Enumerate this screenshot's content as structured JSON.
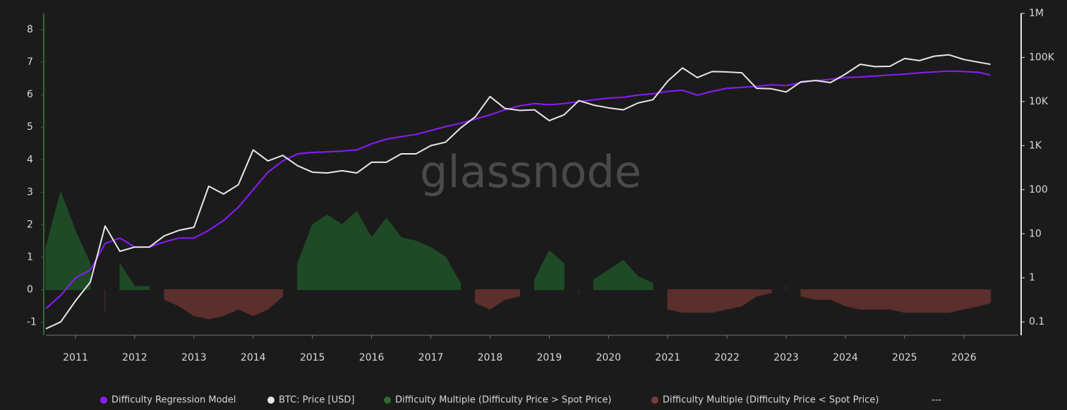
{
  "chart_data": {
    "type": "line",
    "watermark": "glassnode",
    "x": [
      2010.5,
      2010.75,
      2011,
      2011.25,
      2011.5,
      2011.75,
      2012,
      2012.25,
      2012.5,
      2012.75,
      2013,
      2013.25,
      2013.5,
      2013.75,
      2014,
      2014.25,
      2014.5,
      2014.75,
      2015,
      2015.25,
      2015.5,
      2015.75,
      2016,
      2016.25,
      2016.5,
      2016.75,
      2017,
      2017.25,
      2017.5,
      2017.75,
      2018,
      2018.25,
      2018.5,
      2018.75,
      2019,
      2019.25,
      2019.5,
      2019.75,
      2020,
      2020.25,
      2020.5,
      2020.75,
      2021,
      2021.25,
      2021.5,
      2021.75,
      2022,
      2022.25,
      2022.5,
      2022.75,
      2023,
      2023.25,
      2023.5,
      2023.75,
      2024,
      2024.25,
      2024.5,
      2024.75,
      2025,
      2025.25,
      2025.5,
      2025.75,
      2026,
      2026.25,
      2026.45
    ],
    "xlim": [
      2010.5,
      2026.92
    ],
    "xticks": [
      2011,
      2012,
      2013,
      2014,
      2015,
      2016,
      2017,
      2018,
      2019,
      2020,
      2021,
      2022,
      2023,
      2024,
      2025,
      2026
    ],
    "ylim": [
      -1.4,
      8.5
    ],
    "yticks": [
      -1,
      0,
      1,
      2,
      3,
      4,
      5,
      6,
      7,
      8
    ],
    "y2lim": [
      0.05,
      1000000
    ],
    "y2scale": "log",
    "y2ticks": [
      0.1,
      1,
      10,
      100,
      {
        "value": 1000,
        "label": "1K"
      },
      {
        "value": 10000,
        "label": "10K"
      },
      {
        "value": 100000,
        "label": "100K"
      },
      {
        "value": 1000000,
        "label": "1M"
      }
    ],
    "series": [
      {
        "name": "Difficulty Regression Model",
        "color": "#8a1cff",
        "type": "line",
        "axis": "y2",
        "values": [
          0.2,
          0.4,
          1,
          1.5,
          6,
          8,
          5,
          5,
          6.5,
          8,
          8,
          12,
          20,
          40,
          100,
          250,
          450,
          650,
          700,
          720,
          750,
          800,
          1100,
          1400,
          1600,
          1800,
          2200,
          2700,
          3200,
          4000,
          5000,
          6500,
          8000,
          9000,
          8500,
          9000,
          10000,
          11000,
          12000,
          12500,
          14000,
          15000,
          17000,
          18000,
          14000,
          17000,
          20000,
          21000,
          22000,
          24000,
          23000,
          27000,
          30000,
          32000,
          35000,
          36000,
          38000,
          40000,
          42000,
          45000,
          47000,
          49000,
          48000,
          46000,
          40000
        ]
      },
      {
        "name": "BTC: Price [USD]",
        "color": "#e8e8e8",
        "type": "line",
        "axis": "y2",
        "values": [
          0.07,
          0.1,
          0.3,
          0.8,
          15,
          4,
          5,
          5,
          9,
          12,
          14,
          120,
          80,
          130,
          800,
          450,
          600,
          350,
          250,
          240,
          270,
          240,
          420,
          420,
          650,
          650,
          1000,
          1200,
          2500,
          4500,
          13000,
          7000,
          6300,
          6500,
          3700,
          5000,
          10500,
          8300,
          7200,
          6500,
          9300,
          11000,
          29000,
          58000,
          35000,
          48000,
          47000,
          45000,
          20000,
          19500,
          16500,
          28000,
          30000,
          27000,
          42000,
          70000,
          62000,
          63000,
          95000,
          85000,
          107000,
          115000,
          90000,
          78000,
          70000
        ]
      },
      {
        "name": "Difficulty Multiple (Difficulty Price > Spot Price)",
        "color": "#1f4a26",
        "type": "area",
        "values": [
          1.3,
          3.0,
          1.8,
          0.8,
          null,
          0.8,
          0.1,
          0.1,
          null,
          null,
          null,
          null,
          null,
          null,
          null,
          null,
          null,
          0.8,
          2.0,
          2.3,
          2.0,
          2.4,
          1.6,
          2.2,
          1.6,
          1.5,
          1.3,
          1.0,
          0.2,
          null,
          null,
          null,
          null,
          0.3,
          1.2,
          0.8,
          null,
          0.3,
          0.6,
          0.9,
          0.4,
          0.2,
          null,
          null,
          null,
          null,
          null,
          null,
          null,
          null,
          0.1,
          null,
          null,
          null,
          null,
          null,
          null,
          null,
          null,
          null,
          null,
          null,
          null,
          null,
          null
        ]
      },
      {
        "name": "Difficulty Multiple (Difficulty Price < Spot Price)",
        "color": "#5a2f2c",
        "type": "area",
        "values": [
          null,
          null,
          null,
          null,
          -0.7,
          null,
          null,
          null,
          -0.3,
          -0.5,
          -0.8,
          -0.9,
          -0.8,
          -0.6,
          -0.8,
          -0.6,
          -0.2,
          null,
          null,
          null,
          null,
          null,
          null,
          null,
          null,
          null,
          null,
          null,
          null,
          -0.4,
          -0.6,
          -0.3,
          -0.2,
          null,
          null,
          null,
          -0.1,
          null,
          null,
          null,
          null,
          null,
          -0.6,
          -0.7,
          -0.7,
          -0.7,
          -0.6,
          -0.5,
          -0.2,
          -0.1,
          null,
          -0.2,
          -0.3,
          -0.3,
          -0.5,
          -0.6,
          -0.6,
          -0.6,
          -0.7,
          -0.7,
          -0.7,
          -0.7,
          -0.6,
          -0.5,
          -0.4
        ]
      }
    ],
    "legend_extra": "---"
  }
}
